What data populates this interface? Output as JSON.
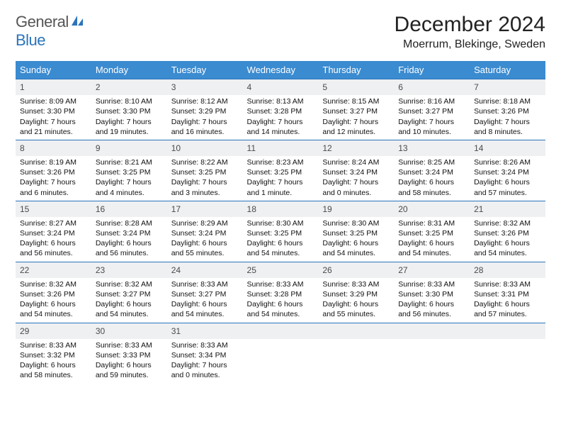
{
  "brand": {
    "part1": "General",
    "part2": "Blue"
  },
  "title": "December 2024",
  "location": "Moerrum, Blekinge, Sweden",
  "colors": {
    "header_bg": "#3b8bd0",
    "header_text": "#ffffff",
    "row_border": "#2a74bc",
    "daynum_bg": "#eef0f2",
    "daynum_text": "#4a4a4a",
    "body_text": "#111111",
    "logo_gray": "#555555",
    "logo_blue": "#2a74bc"
  },
  "weekdays": [
    "Sunday",
    "Monday",
    "Tuesday",
    "Wednesday",
    "Thursday",
    "Friday",
    "Saturday"
  ],
  "days": [
    {
      "n": "1",
      "sr": "8:09 AM",
      "ss": "3:30 PM",
      "dl": "7 hours and 21 minutes."
    },
    {
      "n": "2",
      "sr": "8:10 AM",
      "ss": "3:30 PM",
      "dl": "7 hours and 19 minutes."
    },
    {
      "n": "3",
      "sr": "8:12 AM",
      "ss": "3:29 PM",
      "dl": "7 hours and 16 minutes."
    },
    {
      "n": "4",
      "sr": "8:13 AM",
      "ss": "3:28 PM",
      "dl": "7 hours and 14 minutes."
    },
    {
      "n": "5",
      "sr": "8:15 AM",
      "ss": "3:27 PM",
      "dl": "7 hours and 12 minutes."
    },
    {
      "n": "6",
      "sr": "8:16 AM",
      "ss": "3:27 PM",
      "dl": "7 hours and 10 minutes."
    },
    {
      "n": "7",
      "sr": "8:18 AM",
      "ss": "3:26 PM",
      "dl": "7 hours and 8 minutes."
    },
    {
      "n": "8",
      "sr": "8:19 AM",
      "ss": "3:26 PM",
      "dl": "7 hours and 6 minutes."
    },
    {
      "n": "9",
      "sr": "8:21 AM",
      "ss": "3:25 PM",
      "dl": "7 hours and 4 minutes."
    },
    {
      "n": "10",
      "sr": "8:22 AM",
      "ss": "3:25 PM",
      "dl": "7 hours and 3 minutes."
    },
    {
      "n": "11",
      "sr": "8:23 AM",
      "ss": "3:25 PM",
      "dl": "7 hours and 1 minute."
    },
    {
      "n": "12",
      "sr": "8:24 AM",
      "ss": "3:24 PM",
      "dl": "7 hours and 0 minutes."
    },
    {
      "n": "13",
      "sr": "8:25 AM",
      "ss": "3:24 PM",
      "dl": "6 hours and 58 minutes."
    },
    {
      "n": "14",
      "sr": "8:26 AM",
      "ss": "3:24 PM",
      "dl": "6 hours and 57 minutes."
    },
    {
      "n": "15",
      "sr": "8:27 AM",
      "ss": "3:24 PM",
      "dl": "6 hours and 56 minutes."
    },
    {
      "n": "16",
      "sr": "8:28 AM",
      "ss": "3:24 PM",
      "dl": "6 hours and 56 minutes."
    },
    {
      "n": "17",
      "sr": "8:29 AM",
      "ss": "3:24 PM",
      "dl": "6 hours and 55 minutes."
    },
    {
      "n": "18",
      "sr": "8:30 AM",
      "ss": "3:25 PM",
      "dl": "6 hours and 54 minutes."
    },
    {
      "n": "19",
      "sr": "8:30 AM",
      "ss": "3:25 PM",
      "dl": "6 hours and 54 minutes."
    },
    {
      "n": "20",
      "sr": "8:31 AM",
      "ss": "3:25 PM",
      "dl": "6 hours and 54 minutes."
    },
    {
      "n": "21",
      "sr": "8:32 AM",
      "ss": "3:26 PM",
      "dl": "6 hours and 54 minutes."
    },
    {
      "n": "22",
      "sr": "8:32 AM",
      "ss": "3:26 PM",
      "dl": "6 hours and 54 minutes."
    },
    {
      "n": "23",
      "sr": "8:32 AM",
      "ss": "3:27 PM",
      "dl": "6 hours and 54 minutes."
    },
    {
      "n": "24",
      "sr": "8:33 AM",
      "ss": "3:27 PM",
      "dl": "6 hours and 54 minutes."
    },
    {
      "n": "25",
      "sr": "8:33 AM",
      "ss": "3:28 PM",
      "dl": "6 hours and 54 minutes."
    },
    {
      "n": "26",
      "sr": "8:33 AM",
      "ss": "3:29 PM",
      "dl": "6 hours and 55 minutes."
    },
    {
      "n": "27",
      "sr": "8:33 AM",
      "ss": "3:30 PM",
      "dl": "6 hours and 56 minutes."
    },
    {
      "n": "28",
      "sr": "8:33 AM",
      "ss": "3:31 PM",
      "dl": "6 hours and 57 minutes."
    },
    {
      "n": "29",
      "sr": "8:33 AM",
      "ss": "3:32 PM",
      "dl": "6 hours and 58 minutes."
    },
    {
      "n": "30",
      "sr": "8:33 AM",
      "ss": "3:33 PM",
      "dl": "6 hours and 59 minutes."
    },
    {
      "n": "31",
      "sr": "8:33 AM",
      "ss": "3:34 PM",
      "dl": "7 hours and 0 minutes."
    }
  ],
  "labels": {
    "sunrise": "Sunrise: ",
    "sunset": "Sunset: ",
    "daylight": "Daylight: "
  }
}
